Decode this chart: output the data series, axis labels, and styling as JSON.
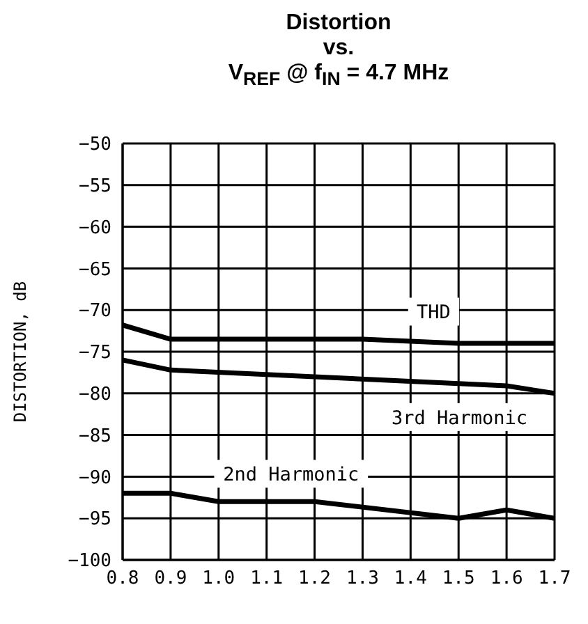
{
  "chart_data": {
    "type": "line",
    "title": "Distortion\nvs.\nV$_{REF}$ @ f$_{IN}$ = 4.7 MHz",
    "ylabel": "DISTORTION, dB",
    "series": [
      {
        "name": "THD",
        "color": "#000000",
        "x": [
          0.8,
          0.9,
          1.0,
          1.2,
          1.3,
          1.5,
          1.7
        ],
        "values": [
          -71.8,
          -73.5,
          -73.5,
          -73.5,
          -73.5,
          -74,
          -74
        ]
      },
      {
        "name": "3rd Harmonic",
        "color": "#000000",
        "x": [
          0.8,
          0.9,
          1.6,
          1.7
        ],
        "values": [
          -76,
          -77.2,
          -79.1,
          -80
        ]
      },
      {
        "name": "2nd Harmonic",
        "color": "#000000",
        "x": [
          0.8,
          0.9,
          1.0,
          1.2,
          1.5,
          1.6,
          1.7
        ],
        "values": [
          -92,
          -92,
          -93,
          -93,
          -95,
          -94,
          -95
        ]
      }
    ],
    "xlim": [
      0.8,
      1.7
    ],
    "xticks": [
      {
        "value": 0.8,
        "label": "0.8"
      },
      {
        "value": 0.9,
        "label": "0.9"
      },
      {
        "value": 1.0,
        "label": "1.0"
      },
      {
        "value": 1.1,
        "label": "1.1"
      },
      {
        "value": 1.2,
        "label": "1.2"
      },
      {
        "value": 1.3,
        "label": "1.3"
      },
      {
        "value": 1.4,
        "label": "1.4"
      },
      {
        "value": 1.5,
        "label": "1.5"
      },
      {
        "value": 1.6,
        "label": "1.6"
      },
      {
        "value": 1.7,
        "label": "1.7"
      }
    ],
    "ylim": [
      -100,
      -50
    ],
    "yticks": [
      -100,
      -95,
      -90,
      -85,
      -80,
      -75,
      -70,
      -65,
      -60,
      -55,
      -50
    ],
    "grid": true,
    "legend": false,
    "marker": "none",
    "line_style": "solid"
  }
}
